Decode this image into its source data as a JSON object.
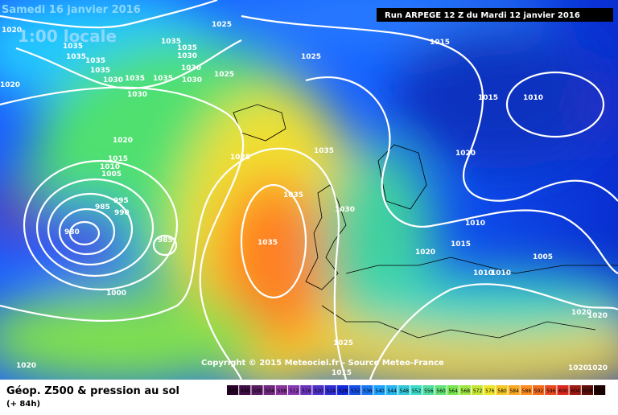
{
  "header": {
    "date": "Samedi 16 janvier 2016",
    "time": "1:00 locale",
    "run": "Run ARPEGE 12 Z du Mardi 12 janvier 2016"
  },
  "copyright": "Copyright © 2015 Meteociel.fr - Source Meteo-France",
  "footer": {
    "title": "Géop. Z500 & pression au sol",
    "lead": "(+ 84h)"
  },
  "scale": [
    492,
    496,
    500,
    504,
    508,
    512,
    516,
    520,
    524,
    528,
    532,
    536,
    540,
    544,
    548,
    552,
    556,
    560,
    564,
    568,
    572,
    576,
    580,
    584,
    588,
    592,
    596,
    600,
    604,
    608,
    612
  ],
  "isobar_labels": [
    "1020",
    "1035",
    "1035",
    "1035",
    "1035",
    "1030",
    "1035",
    "1035",
    "1030",
    "1035",
    "1035",
    "1030",
    "1030",
    "1030",
    "1025",
    "1025",
    "1025",
    "1015",
    "1015",
    "1010",
    "1020",
    "1020",
    "1015",
    "1010",
    "1005",
    "995",
    "990",
    "985",
    "980",
    "985",
    "1000",
    "1025",
    "1035",
    "1035",
    "1030",
    "1035",
    "1020",
    "1010",
    "1015",
    "1020",
    "1005",
    "1010",
    "1010",
    "1020",
    "1020",
    "1025",
    "1015",
    "1020",
    "1020",
    "1020"
  ]
}
